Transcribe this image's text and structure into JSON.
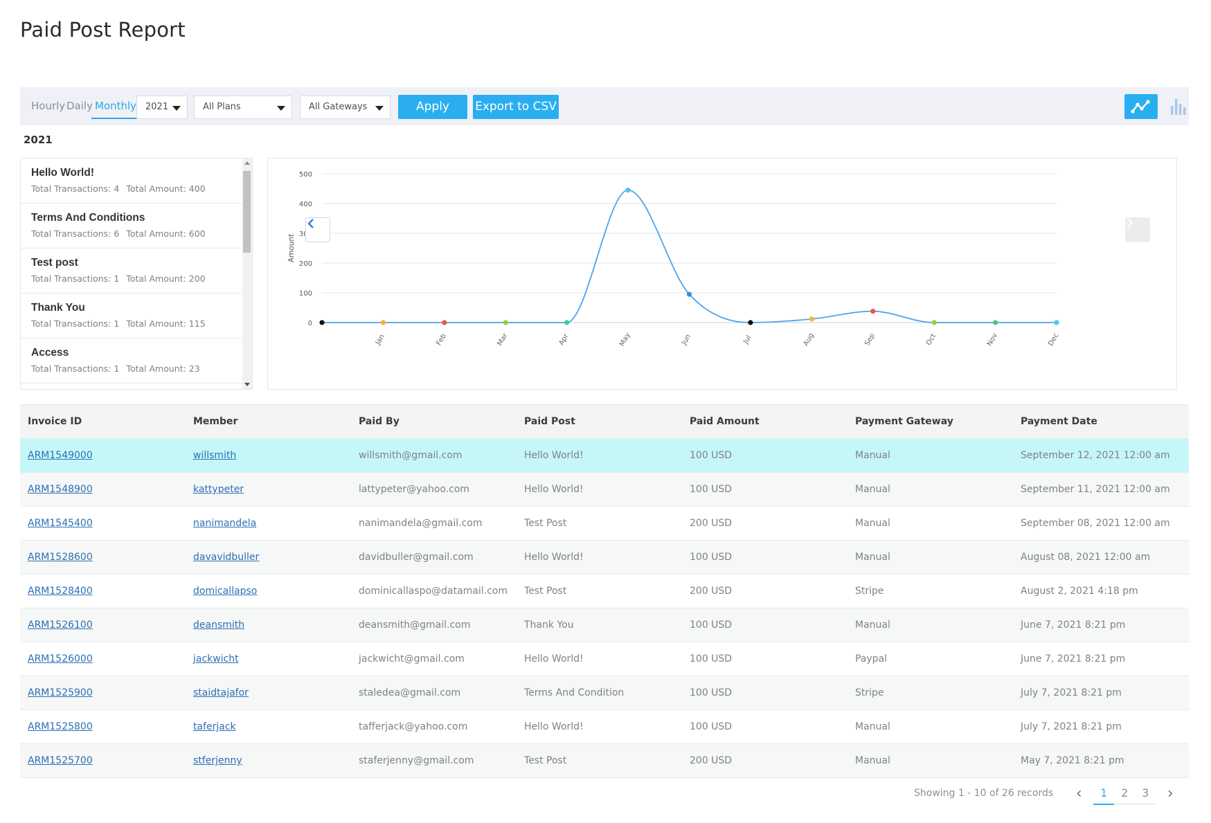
{
  "page": {
    "title": "Paid Post Report"
  },
  "filters": {
    "period_tabs": [
      "Hourly",
      "Daily",
      "Monthly"
    ],
    "active_period": "Monthly",
    "year": "2021",
    "plan": "All Plans",
    "gateway": "All Gateways",
    "apply_label": "Apply",
    "export_label": "Export to CSV",
    "view_modes": [
      "line-chart-icon",
      "bar-chart-icon"
    ],
    "active_view": "line-chart-icon"
  },
  "year_heading": "2021",
  "posts": [
    {
      "title": "Hello World!",
      "transactions": "Total Transactions: 4",
      "amount": "Total Amount: 400"
    },
    {
      "title": "Terms And Conditions",
      "transactions": "Total Transactions: 6",
      "amount": "Total Amount: 600"
    },
    {
      "title": "Test post",
      "transactions": "Total Transactions: 1",
      "amount": "Total Amount: 200"
    },
    {
      "title": "Thank You",
      "transactions": "Total Transactions: 1",
      "amount": "Total Amount: 115"
    },
    {
      "title": "Access",
      "transactions": "Total Transactions: 1",
      "amount": "Total Amount: 23"
    }
  ],
  "chart_data": {
    "type": "line",
    "title": "",
    "xlabel": "",
    "ylabel": "Amount",
    "categories": [
      "",
      "Jan",
      "Feb",
      "Mar",
      "Apr",
      "May",
      "Jun",
      "Jul",
      "Aug",
      "Sep",
      "Oct",
      "Nov",
      "Dec"
    ],
    "values": [
      0,
      0,
      0,
      0,
      0,
      445,
      95,
      0,
      12,
      38,
      0,
      0,
      0
    ],
    "point_colors": [
      "#111111",
      "#f5b52a",
      "#ef5350",
      "#9ccc32",
      "#3fd18a",
      "#4fc6f0",
      "#3d8ee8",
      "#111111",
      "#f5b52a",
      "#ef5350",
      "#9ccc32",
      "#4bc77a",
      "#4fc6f0"
    ],
    "line_color": "#4aa3ee",
    "ylim": [
      0,
      500
    ],
    "yticks": [
      0,
      100,
      200,
      300,
      400,
      500
    ],
    "grid": true,
    "legend": "none"
  },
  "table": {
    "columns": [
      "Invoice ID",
      "Member",
      "Paid By",
      "Paid Post",
      "Paid Amount",
      "Payment Gateway",
      "Payment Date"
    ],
    "rows": [
      [
        "ARM1549000",
        "willsmith",
        "willsmith@gmail.com",
        "Hello World!",
        "100 USD",
        "Manual",
        "September 12, 2021 12:00 am"
      ],
      [
        "ARM1548900",
        "kattypeter",
        "lattypeter@yahoo.com",
        "Hello World!",
        "100 USD",
        "Manual",
        "September 11, 2021 12:00 am"
      ],
      [
        "ARM1545400",
        "nanimandela",
        "nanimandela@gmail.com",
        "Test Post",
        "200 USD",
        "Manual",
        "September 08, 2021 12:00 am"
      ],
      [
        "ARM1528600",
        "davavidbuller",
        "davidbuller@gmail.com",
        "Hello World!",
        "100 USD",
        "Manual",
        "August 08, 2021 12:00 am"
      ],
      [
        "ARM1528400",
        "domicallapso",
        "dominicallaspo@datamail.com",
        "Test Post",
        "200 USD",
        "Stripe",
        "August 2, 2021 4:18 pm"
      ],
      [
        "ARM1526100",
        "deansmith",
        "deansmith@gmail.com",
        "Thank You",
        "100 USD",
        "Manual",
        "June 7, 2021 8:21 pm"
      ],
      [
        "ARM1526000",
        "jackwicht",
        "jackwicht@gmail.com",
        "Hello World!",
        "100 USD",
        "Paypal",
        "June 7, 2021 8:21 pm"
      ],
      [
        "ARM1525900",
        "staidtajafor",
        "staledea@gmail.com",
        "Terms And Condition",
        "100 USD",
        "Stripe",
        "July 7, 2021 8:21 pm"
      ],
      [
        "ARM1525800",
        "taferjack",
        "tafferjack@yahoo.com",
        "Hello World!",
        "100 USD",
        "Manual",
        "July 7, 2021 8:21 pm"
      ],
      [
        "ARM1525700",
        "stferjenny",
        "staferjenny@gmail.com",
        "Test Post",
        "200 USD",
        "Manual",
        "May 7, 2021 8:21 pm"
      ]
    ],
    "highlighted_row": 0
  },
  "pagination": {
    "info": "Showing 1 - 10 of 26 records",
    "pages": [
      "1",
      "2",
      "3"
    ],
    "current": "1"
  }
}
